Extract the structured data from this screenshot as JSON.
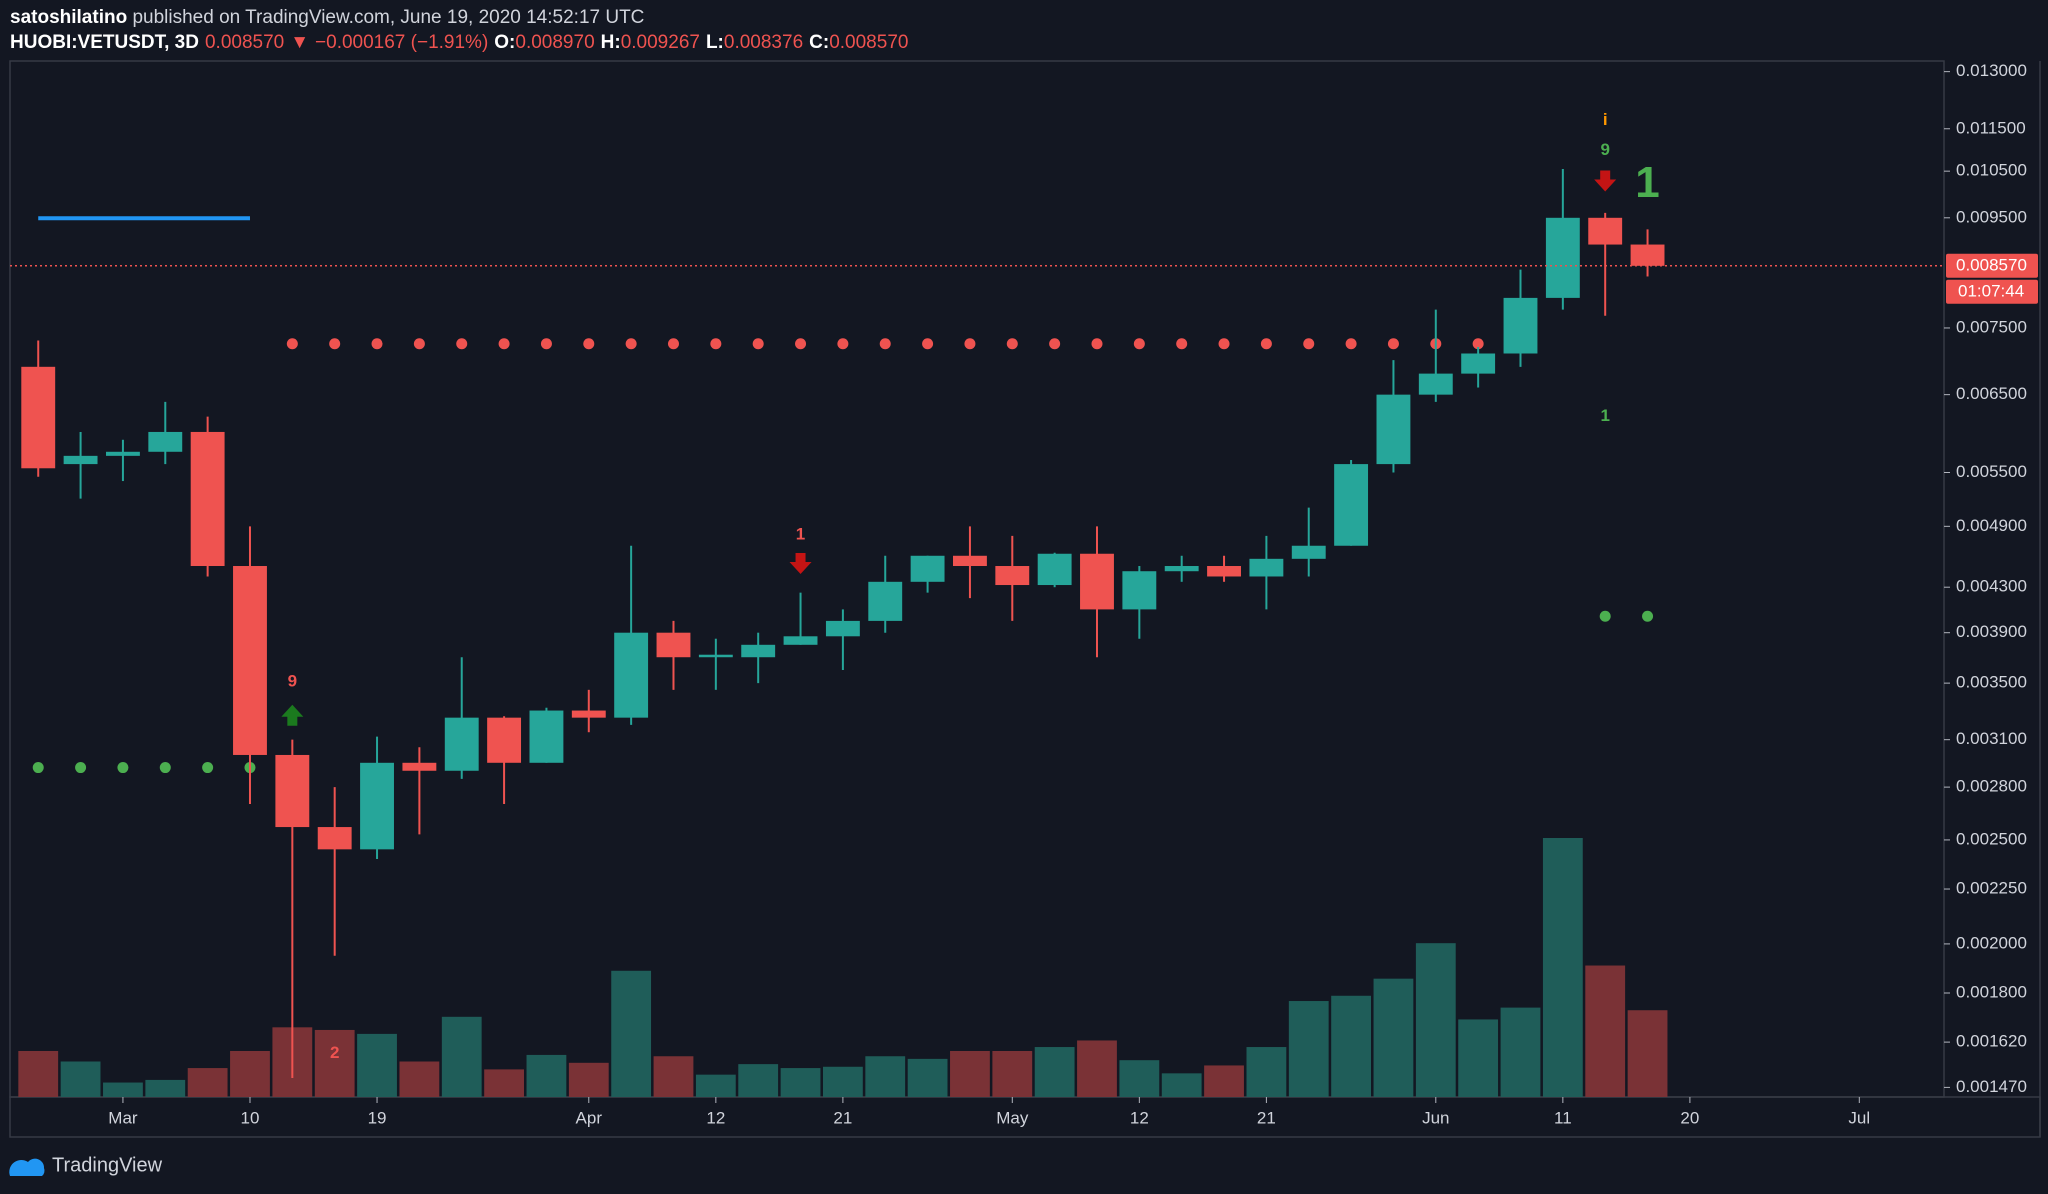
{
  "header": {
    "author": "satoshilatino",
    "published": "published on TradingView.com, June 19, 2020 14:52:17 UTC",
    "legend": [
      {
        "text": "HUOBI:VETUSDT, 3D",
        "color": "#ffffff",
        "bold": true
      },
      {
        "text": "0.008570",
        "color": "#ef5350",
        "bold": false
      },
      {
        "text": "▼",
        "color": "#ef5350",
        "bold": false
      },
      {
        "text": "−0.000167 (−1.91%)",
        "color": "#ef5350",
        "bold": false
      },
      {
        "text": "O:",
        "color": "#ffffff",
        "bold": true
      },
      {
        "text": "0.008970",
        "color": "#ef5350",
        "bold": false
      },
      {
        "text": "H:",
        "color": "#ffffff",
        "bold": true
      },
      {
        "text": "0.009267",
        "color": "#ef5350",
        "bold": false
      },
      {
        "text": "L:",
        "color": "#ffffff",
        "bold": true
      },
      {
        "text": "0.008376",
        "color": "#ef5350",
        "bold": false
      },
      {
        "text": "C:",
        "color": "#ffffff",
        "bold": true
      },
      {
        "text": "0.008570",
        "color": "#ef5350",
        "bold": false
      }
    ]
  },
  "footer": {
    "brand": "TradingView"
  },
  "chart_data": {
    "type": "candlestick",
    "log": true,
    "x": [
      "2020-02-24",
      "2020-02-27",
      "2020-03-01",
      "2020-03-04",
      "2020-03-07",
      "2020-03-10",
      "2020-03-13",
      "2020-03-16",
      "2020-03-19",
      "2020-03-22",
      "2020-03-25",
      "2020-03-28",
      "2020-03-31",
      "2020-04-03",
      "2020-04-06",
      "2020-04-09",
      "2020-04-12",
      "2020-04-15",
      "2020-04-18",
      "2020-04-21",
      "2020-04-24",
      "2020-04-27",
      "2020-04-30",
      "2020-05-03",
      "2020-05-06",
      "2020-05-09",
      "2020-05-12",
      "2020-05-15",
      "2020-05-18",
      "2020-05-21",
      "2020-05-24",
      "2020-05-27",
      "2020-05-30",
      "2020-06-02",
      "2020-06-05",
      "2020-06-08",
      "2020-06-11",
      "2020-06-14",
      "2020-06-17"
    ],
    "open": [
      0.0069,
      0.0056,
      0.0057,
      0.00575,
      0.006,
      0.0045,
      0.003,
      0.00257,
      0.00245,
      0.00295,
      0.0029,
      0.00325,
      0.00295,
      0.0033,
      0.00325,
      0.0039,
      0.0037,
      0.0037,
      0.0038,
      0.00387,
      0.004,
      0.00435,
      0.0046,
      0.0045,
      0.00432,
      0.00462,
      0.0041,
      0.00445,
      0.0045,
      0.0044,
      0.00457,
      0.0047,
      0.0056,
      0.0065,
      0.0068,
      0.0071,
      0.008,
      0.0095,
      0.00897
    ],
    "high": [
      0.0073,
      0.006,
      0.0059,
      0.0064,
      0.0062,
      0.0049,
      0.0031,
      0.0028,
      0.00312,
      0.00305,
      0.0037,
      0.00326,
      0.00332,
      0.00345,
      0.0047,
      0.004,
      0.00385,
      0.0039,
      0.00425,
      0.0041,
      0.0046,
      0.0046,
      0.0049,
      0.0048,
      0.00463,
      0.0049,
      0.0045,
      0.0046,
      0.0046,
      0.0048,
      0.0051,
      0.00565,
      0.007,
      0.0078,
      0.0072,
      0.0085,
      0.01055,
      0.0096,
      0.009267
    ],
    "low": [
      0.00545,
      0.0052,
      0.0054,
      0.0056,
      0.0044,
      0.0027,
      0.0015,
      0.00195,
      0.0024,
      0.00253,
      0.00285,
      0.0027,
      0.00295,
      0.00315,
      0.0032,
      0.00345,
      0.00345,
      0.0035,
      0.0038,
      0.0036,
      0.0039,
      0.00425,
      0.0042,
      0.004,
      0.0043,
      0.0037,
      0.00385,
      0.00435,
      0.00435,
      0.0041,
      0.0044,
      0.0047,
      0.0055,
      0.0064,
      0.0066,
      0.0069,
      0.0078,
      0.0077,
      0.008376
    ],
    "close": [
      0.00555,
      0.0057,
      0.00575,
      0.006,
      0.0045,
      0.003,
      0.00257,
      0.00245,
      0.00295,
      0.0029,
      0.00325,
      0.00295,
      0.0033,
      0.00325,
      0.0039,
      0.0037,
      0.00372,
      0.0038,
      0.00387,
      0.004,
      0.00435,
      0.0046,
      0.0045,
      0.00432,
      0.00462,
      0.0041,
      0.00445,
      0.0045,
      0.0044,
      0.00457,
      0.0047,
      0.0056,
      0.0065,
      0.0068,
      0.0071,
      0.008,
      0.0095,
      0.00897,
      0.00857
    ],
    "volume": [
      35,
      27,
      11,
      13,
      22,
      35,
      53,
      51,
      48,
      27,
      61,
      21,
      32,
      26,
      96,
      31,
      17,
      25,
      22,
      23,
      31,
      29,
      35,
      35,
      38,
      43,
      28,
      18,
      24,
      38,
      73,
      77,
      90,
      117,
      59,
      68,
      197,
      100,
      66
    ],
    "up_color": "#26a69a",
    "down_color": "#ef5350",
    "volume_up_color": "#1f5d59",
    "volume_down_color": "#7a3236",
    "xlim": [
      "2020-02-22",
      "2020-07-08"
    ],
    "xticks": [
      {
        "value": "2020-03-01",
        "label": "Mar"
      },
      {
        "value": "2020-03-10",
        "label": "10"
      },
      {
        "value": "2020-03-19",
        "label": "19"
      },
      {
        "value": "2020-04-03",
        "label": "Apr"
      },
      {
        "value": "2020-04-12",
        "label": "12"
      },
      {
        "value": "2020-04-21",
        "label": "21"
      },
      {
        "value": "2020-05-03",
        "label": "May"
      },
      {
        "value": "2020-05-12",
        "label": "12"
      },
      {
        "value": "2020-05-21",
        "label": "21"
      },
      {
        "value": "2020-06-02",
        "label": "Jun"
      },
      {
        "value": "2020-06-11",
        "label": "11"
      },
      {
        "value": "2020-06-20",
        "label": "20"
      },
      {
        "value": "2020-07-02",
        "label": "Jul"
      }
    ],
    "ylim": [
      0.00144,
      0.0133
    ],
    "yticks": [
      {
        "value": 0.013,
        "label": "0.013000"
      },
      {
        "value": 0.0115,
        "label": "0.011500"
      },
      {
        "value": 0.0105,
        "label": "0.010500"
      },
      {
        "value": 0.0095,
        "label": "0.009500"
      },
      {
        "value": 0.0075,
        "label": "0.007500"
      },
      {
        "value": 0.0065,
        "label": "0.006500"
      },
      {
        "value": 0.0055,
        "label": "0.005500"
      },
      {
        "value": 0.0049,
        "label": "0.004900"
      },
      {
        "value": 0.0043,
        "label": "0.004300"
      },
      {
        "value": 0.0039,
        "label": "0.003900"
      },
      {
        "value": 0.0035,
        "label": "0.003500"
      },
      {
        "value": 0.0031,
        "label": "0.003100"
      },
      {
        "value": 0.0028,
        "label": "0.002800"
      },
      {
        "value": 0.0025,
        "label": "0.002500"
      },
      {
        "value": 0.00225,
        "label": "0.002250"
      },
      {
        "value": 0.002,
        "label": "0.002000"
      },
      {
        "value": 0.0018,
        "label": "0.001800"
      },
      {
        "value": 0.00162,
        "label": "0.001620"
      },
      {
        "value": 0.00147,
        "label": "0.001470"
      }
    ],
    "price_label": "0.008570",
    "countdown": "01:07:44",
    "price_line_color": "#ef5350",
    "levels": [
      {
        "style": "dots",
        "price": 0.00725,
        "from": "2020-03-13",
        "to": "2020-06-05",
        "color": "#ef5350"
      },
      {
        "style": "dots",
        "price": 0.00292,
        "from": "2020-02-24",
        "to": "2020-03-10",
        "color": "#4caf50"
      },
      {
        "style": "dots",
        "price": 0.00404,
        "from": "2020-06-14",
        "to": "2020-06-17",
        "color": "#4caf50"
      },
      {
        "style": "line",
        "price": 0.00949,
        "from": "2020-02-24",
        "to": "2020-03-10",
        "color": "#2196f3"
      }
    ],
    "markers": [
      {
        "date": "2020-03-13",
        "price": 0.00351,
        "text": "9",
        "color": "#ef5350"
      },
      {
        "date": "2020-03-13",
        "price": 0.00327,
        "shape": "arrow-up",
        "color": "#1b7a1e"
      },
      {
        "date": "2020-03-16",
        "price": 0.00158,
        "text": "2",
        "color": "#ef5350"
      },
      {
        "date": "2020-04-18",
        "price": 0.00481,
        "text": "1",
        "color": "#ef5350"
      },
      {
        "date": "2020-04-18",
        "price": 0.00452,
        "shape": "arrow-down",
        "color": "#c41414"
      },
      {
        "date": "2020-06-14",
        "price": 0.01171,
        "text": "i",
        "color": "#ff9800"
      },
      {
        "date": "2020-06-14",
        "price": 0.01098,
        "text": "9",
        "color": "#4caf50"
      },
      {
        "date": "2020-06-14",
        "price": 0.01027,
        "shape": "arrow-down",
        "color": "#c41414"
      },
      {
        "date": "2020-06-17",
        "price": 0.01018,
        "text": "1",
        "color": "#4caf50",
        "emphasis": true
      },
      {
        "date": "2020-06-14",
        "price": 0.0062,
        "text": "1",
        "color": "#4caf50"
      }
    ]
  }
}
